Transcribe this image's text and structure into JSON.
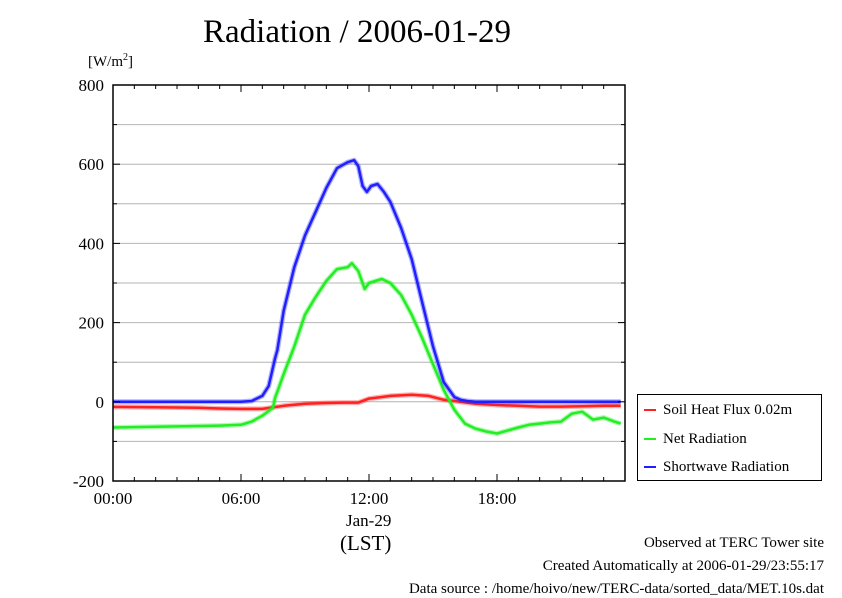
{
  "chart_data": {
    "type": "line",
    "title": "Radiation / 2006-01-29",
    "ylabel": "[W/m²]",
    "xlabel": "(LST)",
    "date_label": "Jan-29",
    "xlim": [
      0,
      24
    ],
    "ylim": [
      -200,
      800
    ],
    "x_ticks": [
      {
        "value": 0,
        "label": "00:00"
      },
      {
        "value": 6,
        "label": "06:00"
      },
      {
        "value": 12,
        "label": "12:00"
      },
      {
        "value": 18,
        "label": "18:00"
      }
    ],
    "y_ticks": [
      {
        "value": -200,
        "label": "-200"
      },
      {
        "value": 0,
        "label": "0"
      },
      {
        "value": 200,
        "label": "200"
      },
      {
        "value": 400,
        "label": "400"
      },
      {
        "value": 600,
        "label": "600"
      },
      {
        "value": 800,
        "label": "800"
      }
    ],
    "grid": true,
    "legend_position": "right-bottom",
    "series": [
      {
        "name": "Soil Heat Flux 0.02m",
        "color": "#ff2020",
        "x": [
          0,
          2,
          4,
          5,
          6,
          7,
          8,
          9,
          10,
          10.8,
          11.5,
          12,
          13,
          14,
          14.8,
          15.5,
          16,
          17,
          18,
          19,
          20,
          21,
          22,
          23,
          23.8
        ],
        "y": [
          -13,
          -14,
          -15,
          -17,
          -18,
          -18,
          -10,
          -5,
          -3,
          -2,
          -2,
          8,
          15,
          18,
          15,
          5,
          2,
          -5,
          -8,
          -10,
          -12,
          -12,
          -11,
          -10,
          -10
        ]
      },
      {
        "name": "Net Radiation",
        "color": "#22ee22",
        "x": [
          0,
          1,
          2,
          3,
          4,
          5,
          6,
          6.5,
          7,
          7.5,
          7.6,
          7.8,
          8,
          8.5,
          9,
          9.5,
          10,
          10.5,
          11,
          11.2,
          11.5,
          11.8,
          12,
          12.3,
          12.6,
          13,
          13.5,
          14,
          14.5,
          15,
          15.5,
          16,
          16.5,
          17,
          17.5,
          18,
          19,
          19.5,
          20,
          20.5,
          21,
          21.5,
          22,
          22.5,
          23,
          23.5,
          23.8
        ],
        "y": [
          -65,
          -64,
          -63,
          -62,
          -61,
          -60,
          -58,
          -50,
          -35,
          -15,
          10,
          40,
          70,
          140,
          220,
          265,
          305,
          335,
          340,
          350,
          330,
          285,
          300,
          305,
          310,
          300,
          270,
          220,
          160,
          95,
          30,
          -20,
          -55,
          -68,
          -75,
          -80,
          -65,
          -58,
          -55,
          -52,
          -50,
          -30,
          -25,
          -45,
          -40,
          -50,
          -55
        ]
      },
      {
        "name": "Shortwave Radiation",
        "color": "#2020ff",
        "x": [
          0,
          1,
          2,
          3,
          4,
          5,
          6,
          6.5,
          7,
          7.3,
          7.6,
          7.7,
          8,
          8.5,
          9,
          9.5,
          10,
          10.5,
          11,
          11.3,
          11.5,
          11.7,
          11.9,
          12.1,
          12.4,
          12.7,
          13,
          13.5,
          14,
          14.5,
          15,
          15.5,
          16,
          16.3,
          16.6,
          17,
          18,
          19,
          20,
          21,
          22,
          23,
          23.8
        ],
        "y": [
          0,
          0,
          0,
          0,
          0,
          0,
          0,
          2,
          15,
          40,
          110,
          130,
          230,
          340,
          420,
          480,
          540,
          590,
          605,
          610,
          595,
          545,
          530,
          545,
          550,
          530,
          505,
          440,
          360,
          250,
          140,
          50,
          12,
          5,
          2,
          0,
          0,
          0,
          0,
          0,
          0,
          0,
          0
        ]
      }
    ]
  },
  "footer": {
    "line1": "Observed at TERC Tower site",
    "line2": "Created Automatically at 2006-01-29/23:55:17",
    "line3": "Data source : /home/hoivo/new/TERC-data/sorted_data/MET.10s.dat"
  }
}
